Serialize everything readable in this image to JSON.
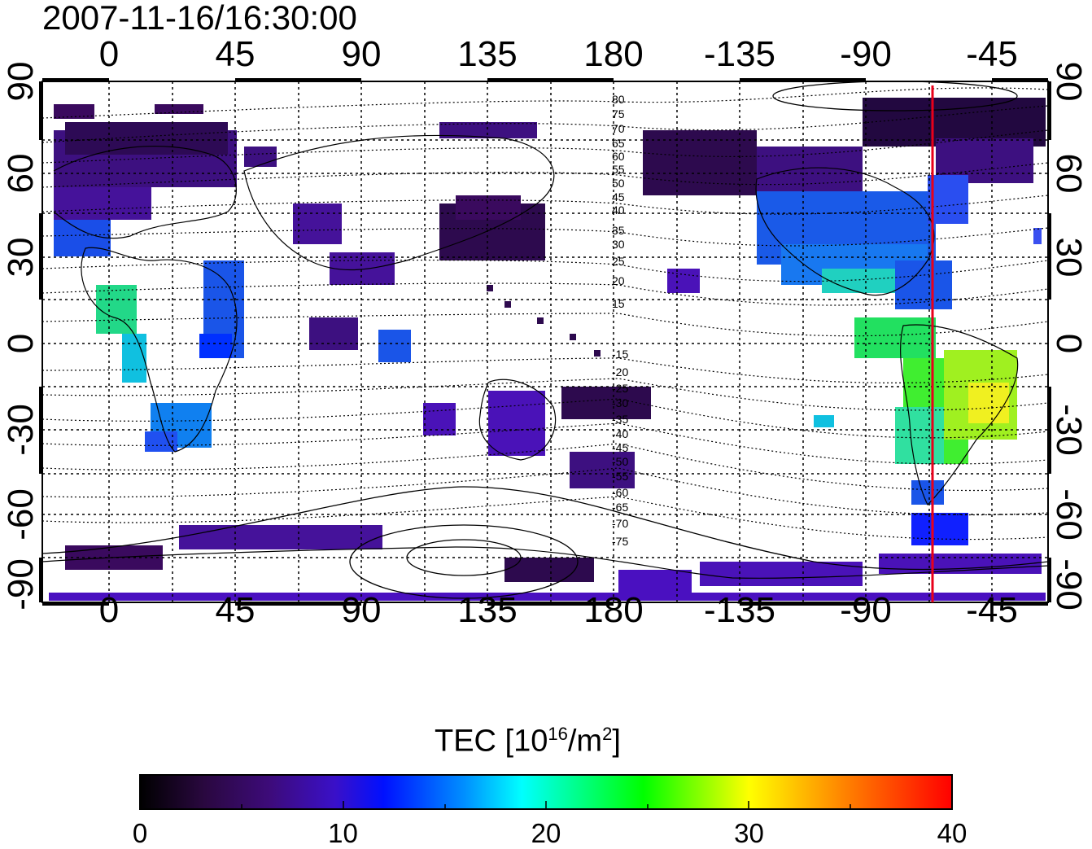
{
  "title": "2007-11-16/16:30:00",
  "map": {
    "top_longitude_ticks": [
      "0",
      "45",
      "90",
      "135",
      "180",
      "-135",
      "-90",
      "-45"
    ],
    "bottom_longitude_ticks": [
      "0",
      "45",
      "90",
      "135",
      "180",
      "-135",
      "-90",
      "-45"
    ],
    "left_latitude_ticks": [
      "90",
      "60",
      "30",
      "0",
      "-30",
      "-60",
      "-90"
    ],
    "right_latitude_ticks": [
      "90",
      "60",
      "30",
      "0",
      "-30",
      "-60",
      "-90"
    ],
    "contour_labels": [
      "80",
      "75",
      "70",
      "65",
      "60",
      "55",
      "50",
      "45",
      "40",
      "35",
      "30",
      "25",
      "20",
      "15",
      "-15",
      "-20",
      "-25",
      "-30",
      "-35",
      "-40",
      "-45",
      "-50",
      "-55",
      "-60",
      "-65",
      "-70",
      "-75"
    ],
    "marker_line_longitude": -68,
    "marker_line_color": "#e8001a"
  },
  "colorbar": {
    "title_prefix": "TEC  [10",
    "title_sup1": "16",
    "title_mid": "/m",
    "title_sup2": "2",
    "title_suffix": "]",
    "min": 0,
    "max": 40,
    "tick_labels": [
      "0",
      "10",
      "20",
      "30",
      "40"
    ],
    "colors": [
      "#000000",
      "#3a0a5e",
      "#4a0fb0",
      "#0020ff",
      "#00ffff",
      "#00ff00",
      "#ffff00",
      "#ff8000",
      "#ff0000"
    ]
  }
}
